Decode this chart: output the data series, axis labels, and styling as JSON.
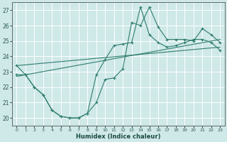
{
  "xlabel": "Humidex (Indice chaleur)",
  "xlim": [
    -0.5,
    23.5
  ],
  "ylim": [
    19.5,
    27.5
  ],
  "xticks": [
    0,
    1,
    2,
    3,
    4,
    5,
    6,
    7,
    8,
    9,
    10,
    11,
    12,
    13,
    14,
    15,
    16,
    17,
    18,
    19,
    20,
    21,
    22,
    23
  ],
  "yticks": [
    20,
    21,
    22,
    23,
    24,
    25,
    26,
    27
  ],
  "bg_color": "#cfe8e8",
  "grid_color": "#ffffff",
  "line_color": "#2e7d6e",
  "line1_x": [
    0,
    1,
    2,
    3,
    4,
    5,
    6,
    7,
    8,
    9,
    10,
    11,
    12,
    13,
    14,
    15,
    16,
    17,
    18,
    19,
    20,
    21,
    22,
    23
  ],
  "line1_y": [
    23.4,
    22.8,
    22.0,
    21.5,
    20.5,
    20.1,
    20.0,
    20.0,
    20.3,
    21.0,
    22.5,
    22.6,
    23.2,
    26.2,
    26.0,
    27.2,
    25.9,
    25.1,
    25.1,
    25.1,
    25.0,
    25.8,
    25.4,
    24.9
  ],
  "line2_x": [
    0,
    1,
    2,
    3,
    4,
    5,
    6,
    7,
    8,
    9,
    10,
    11,
    12,
    13,
    14,
    15,
    16,
    17,
    18,
    19,
    20,
    21,
    22,
    23
  ],
  "line2_y": [
    22.8,
    22.8,
    22.0,
    21.5,
    20.5,
    20.1,
    20.0,
    20.0,
    20.3,
    22.8,
    23.8,
    24.7,
    24.8,
    24.9,
    27.2,
    25.4,
    24.9,
    24.6,
    24.7,
    24.9,
    25.1,
    25.1,
    24.9,
    24.4
  ],
  "line3_x": [
    0,
    23
  ],
  "line3_y": [
    22.7,
    25.1
  ],
  "line4_x": [
    0,
    23
  ],
  "line4_y": [
    23.4,
    24.6
  ]
}
